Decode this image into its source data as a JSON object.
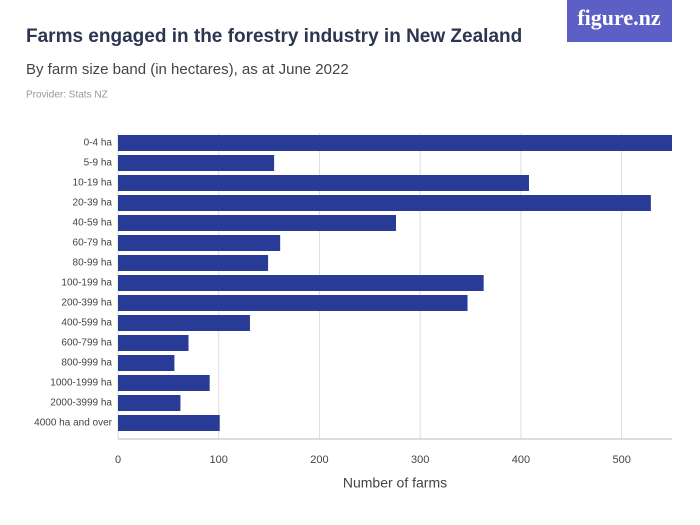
{
  "brand": "figure.nz",
  "chart_data": {
    "type": "bar",
    "orientation": "horizontal",
    "title": "Farms engaged in the forestry industry in New Zealand",
    "subtitle": "By farm size band (in hectares), as at June 2022",
    "provider": "Provider: Stats NZ",
    "x_label": "Number of farms",
    "categories": [
      "0-4 ha",
      "5-9 ha",
      "10-19 ha",
      "20-39 ha",
      "40-59 ha",
      "60-79 ha",
      "80-99 ha",
      "100-199 ha",
      "200-399 ha",
      "400-599 ha",
      "600-799 ha",
      "800-999 ha",
      "1000-1999 ha",
      "2000-3999 ha",
      "4000 ha and over"
    ],
    "values": [
      550,
      155,
      408,
      529,
      276,
      161,
      149,
      363,
      347,
      131,
      70,
      56,
      91,
      62,
      101
    ],
    "color": "#273b97",
    "xlim": [
      0,
      550
    ],
    "xticks": [
      0,
      100,
      200,
      300,
      400,
      500
    ],
    "grid": true
  }
}
